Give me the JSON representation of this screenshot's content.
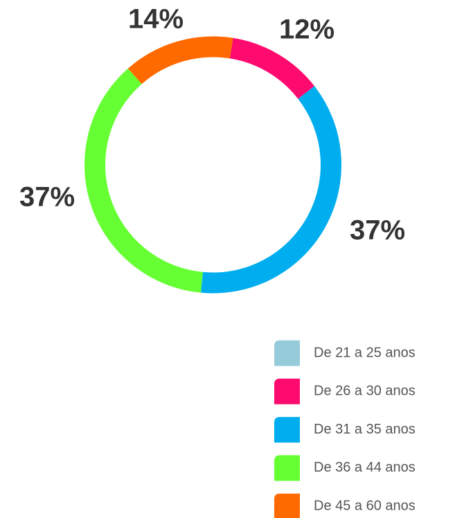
{
  "chart_data": {
    "type": "donut",
    "categories": [
      "De 21 a 25 anos",
      "De 26 a 30 anos",
      "De 31 a 35 anos",
      "De 36 a 44 anos",
      "De 45 a 60 anos"
    ],
    "values": [
      0,
      12,
      37,
      37,
      14
    ],
    "value_labels": [
      null,
      "12%",
      "37%",
      "37%",
      "14%"
    ],
    "colors": [
      "#96ccd9",
      "#ff0a6e",
      "#00aeef",
      "#66ff33",
      "#ff6a00"
    ],
    "legend": "bottom-right"
  }
}
